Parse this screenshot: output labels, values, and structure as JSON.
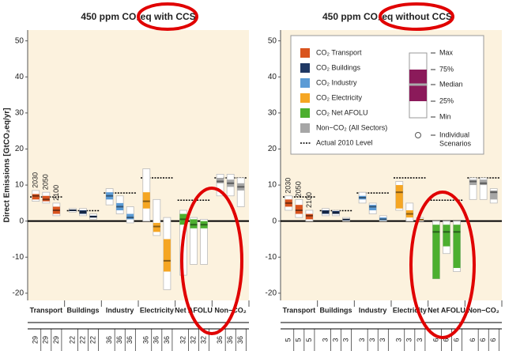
{
  "chart_data": [
    {
      "type": "box",
      "title": "450 ppm CO₂eq with CCS",
      "ylabel": "Direct Emissions [GtCO₂eq/yr]",
      "ylim": [
        -22,
        53
      ],
      "yticks": [
        -20,
        -10,
        0,
        10,
        20,
        30,
        40,
        50
      ],
      "categories": [
        "Transport",
        "Buildings",
        "Industry",
        "Electricity",
        "Net AFOLU",
        "Non−CO₂"
      ],
      "years": [
        "2030",
        "2050",
        "2100"
      ],
      "series": [
        {
          "color": "#d9541e",
          "level": 6.7,
          "counts": [
            29,
            29,
            29
          ],
          "boxes": [
            {
              "min": 5.5,
              "q1": 6,
              "median": 7,
              "q3": 7.5,
              "max": 8.5
            },
            {
              "min": 5,
              "q1": 5.5,
              "median": 6,
              "q3": 7,
              "max": 8
            },
            {
              "min": 1.5,
              "q1": 2,
              "median": 3,
              "q3": 4,
              "max": 5
            }
          ]
        },
        {
          "color": "#1f3864",
          "level": 2.9,
          "counts": [
            22,
            22,
            22
          ],
          "boxes": [
            {
              "min": 2.5,
              "q1": 2.8,
              "median": 3,
              "q3": 3.2,
              "max": 3.5
            },
            {
              "min": 1.5,
              "q1": 2,
              "median": 2.5,
              "q3": 3,
              "max": 3.5
            },
            {
              "min": 0.5,
              "q1": 1,
              "median": 1.2,
              "q3": 1.5,
              "max": 2
            }
          ]
        },
        {
          "color": "#5b9bd5",
          "level": 7.8,
          "counts": [
            36,
            36,
            36
          ],
          "boxes": [
            {
              "min": 4.5,
              "q1": 6,
              "median": 7,
              "q3": 8,
              "max": 9
            },
            {
              "min": 2,
              "q1": 3,
              "median": 4,
              "q3": 5,
              "max": 7
            },
            {
              "min": -0.5,
              "q1": 0.5,
              "median": 1,
              "q3": 2,
              "max": 4
            }
          ]
        },
        {
          "color": "#f5a623",
          "level": 12,
          "counts": [
            36,
            36,
            36
          ],
          "boxes": [
            {
              "min": 0,
              "q1": 3.5,
              "median": 5.5,
              "q3": 8,
              "max": 14.5
            },
            {
              "min": -4,
              "q1": -3,
              "median": -1.5,
              "q3": -0.5,
              "max": 6
            },
            {
              "min": -19,
              "q1": -14,
              "median": -11,
              "q3": -5,
              "max": 1
            }
          ]
        },
        {
          "color": "#4caf2f",
          "level": 5.8,
          "counts": [
            32,
            32,
            32
          ],
          "boxes": [
            {
              "min": -15,
              "q1": -1,
              "median": 0.5,
              "q3": 2,
              "max": 3
            },
            {
              "min": -12,
              "q1": -2,
              "median": -1,
              "q3": 0.5,
              "max": 1
            },
            {
              "min": -12,
              "q1": -2,
              "median": -1,
              "q3": 0,
              "max": 0.5
            }
          ]
        },
        {
          "color": "#a6a6a6",
          "level": 12,
          "counts": [
            36,
            36,
            36
          ],
          "boxes": [
            {
              "min": 7,
              "q1": 10.5,
              "median": 11,
              "q3": 12,
              "max": 13
            },
            {
              "min": 7,
              "q1": 9.5,
              "median": 10.5,
              "q3": 11.5,
              "max": 13
            },
            {
              "min": 4,
              "q1": 8.5,
              "median": 9.5,
              "q3": 10.5,
              "max": 12
            }
          ]
        }
      ]
    },
    {
      "type": "box",
      "title": "450 ppm CO₂eq without CCS",
      "ylim": [
        -22,
        53
      ],
      "yticks": [
        -20,
        -10,
        0,
        10,
        20,
        30,
        40,
        50
      ],
      "categories": [
        "Transport",
        "Buildings",
        "Industry",
        "Electricity",
        "Net AFOLU",
        "Non−CO₂"
      ],
      "years": [
        "2030",
        "2050",
        "2100"
      ],
      "series": [
        {
          "color": "#d9541e",
          "level": 6.7,
          "counts": [
            5,
            5,
            5
          ],
          "boxes": [
            {
              "min": 3,
              "q1": 4,
              "median": 5,
              "q3": 6,
              "max": 7
            },
            {
              "min": 1,
              "q1": 2,
              "median": 3,
              "q3": 4.5,
              "max": 6
            },
            {
              "min": 0,
              "q1": 0.5,
              "median": 1.5,
              "q3": 2,
              "max": 3
            }
          ]
        },
        {
          "color": "#1f3864",
          "level": 2.9,
          "counts": [
            3,
            3,
            3
          ],
          "boxes": [
            {
              "min": 1.5,
              "q1": 2,
              "median": 2.5,
              "q3": 3,
              "max": 3.5
            },
            {
              "min": 1.5,
              "q1": 2,
              "median": 2.3,
              "q3": 2.8,
              "max": 3
            },
            {
              "min": 0,
              "q1": 0.2,
              "median": 0.5,
              "q3": 0.6,
              "max": 1
            }
          ]
        },
        {
          "color": "#5b9bd5",
          "level": 7.8,
          "counts": [
            3,
            3,
            3
          ],
          "boxes": [
            {
              "min": 5,
              "q1": 6,
              "median": 6.5,
              "q3": 7,
              "max": 8
            },
            {
              "min": 2,
              "q1": 3,
              "median": 4,
              "q3": 4.5,
              "max": 5
            },
            {
              "min": 0,
              "q1": 0.2,
              "median": 0.5,
              "q3": 1,
              "max": 1.5
            }
          ]
        },
        {
          "color": "#f5a623",
          "level": 12,
          "counts": [
            3,
            3,
            3
          ],
          "boxes": [
            {
              "min": 3,
              "q1": 3.5,
              "median": 8,
              "q3": 10,
              "max": 11
            },
            {
              "min": 0,
              "q1": 1,
              "median": 2,
              "q3": 3,
              "max": 5
            },
            {
              "min": 0,
              "q1": 0.2,
              "median": 0.4,
              "q3": 0.6,
              "max": 1
            }
          ]
        },
        {
          "color": "#4caf2f",
          "level": 5.8,
          "counts": [
            6,
            6,
            6
          ],
          "boxes": [
            {
              "min": -16,
              "q1": -16,
              "median": -3,
              "q3": -1,
              "max": 0
            },
            {
              "min": -9,
              "q1": -7,
              "median": -3,
              "q3": -1,
              "max": 0
            },
            {
              "min": -14,
              "q1": -13,
              "median": -3,
              "q3": -1,
              "max": 0
            }
          ]
        },
        {
          "color": "#a6a6a6",
          "level": 12,
          "counts": [
            6,
            6,
            6
          ],
          "boxes": [
            {
              "min": 6,
              "q1": 10,
              "median": 11,
              "q3": 11.5,
              "max": 12
            },
            {
              "min": 6,
              "q1": 10,
              "median": 10.5,
              "q3": 11.5,
              "max": 12
            },
            {
              "min": 5,
              "q1": 6,
              "median": 8,
              "q3": 8.5,
              "max": 9
            }
          ]
        }
      ]
    }
  ],
  "legend": {
    "items": [
      {
        "label": "CO₂ Transport",
        "color": "#d9541e"
      },
      {
        "label": "CO₂ Buildings",
        "color": "#1f3864"
      },
      {
        "label": "CO₂ Industry",
        "color": "#5b9bd5"
      },
      {
        "label": "CO₂ Electricity",
        "color": "#f5a623"
      },
      {
        "label": "CO₂ Net AFOLU",
        "color": "#4caf2f"
      },
      {
        "label": "Non−CO₂ (All Sectors)",
        "color": "#a6a6a6"
      }
    ],
    "level_label": "Actual 2010 Level",
    "stats": [
      "Max",
      "75%",
      "Median",
      "25%",
      "Min"
    ],
    "scenario_label": [
      "Individual",
      "Scenarios"
    ]
  }
}
